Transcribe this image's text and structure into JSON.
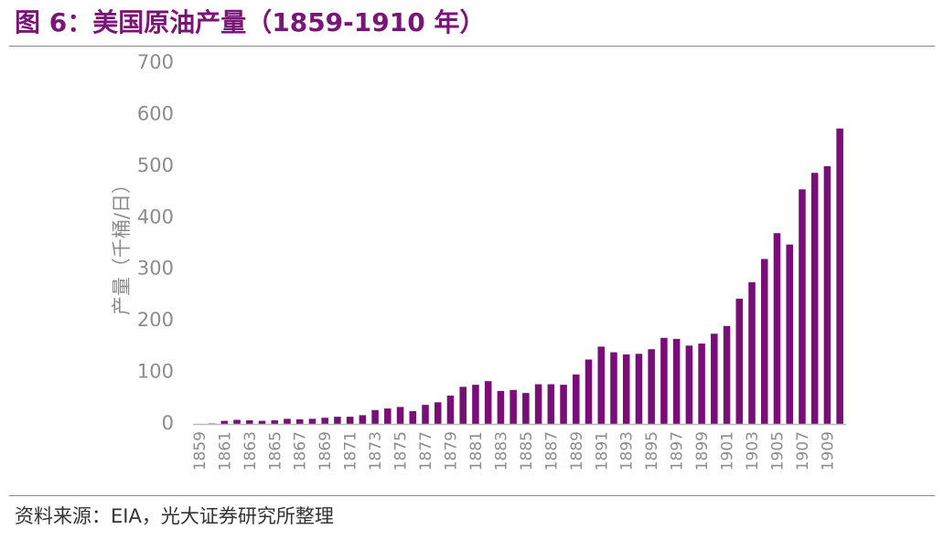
{
  "title": "图 6：美国原油产量（1859-1910 年）",
  "source": "资料来源：EIA，光大证券研究所整理",
  "colors": {
    "bar": "#7a0e78",
    "title": "#7a1577",
    "axis": "#bbbbbb",
    "tick_text": "#8c8c8c"
  },
  "chart_data": {
    "type": "bar",
    "title": "",
    "xlabel": "",
    "ylabel": "产量（千桶/日）",
    "ylim": [
      0,
      700
    ],
    "yticks": [
      0,
      100,
      200,
      300,
      400,
      500,
      600,
      700
    ],
    "grid": false,
    "categories": [
      "1859",
      "1860",
      "1861",
      "1862",
      "1863",
      "1864",
      "1865",
      "1866",
      "1867",
      "1868",
      "1869",
      "1870",
      "1871",
      "1872",
      "1873",
      "1874",
      "1875",
      "1876",
      "1877",
      "1878",
      "1879",
      "1880",
      "1881",
      "1882",
      "1883",
      "1884",
      "1885",
      "1886",
      "1887",
      "1888",
      "1889",
      "1890",
      "1891",
      "1892",
      "1893",
      "1894",
      "1895",
      "1896",
      "1897",
      "1898",
      "1899",
      "1900",
      "1901",
      "1902",
      "1903",
      "1904",
      "1905",
      "1906",
      "1907",
      "1908",
      "1909",
      "1910"
    ],
    "xtick_labels": [
      "1859",
      "1861",
      "1863",
      "1865",
      "1867",
      "1869",
      "1871",
      "1873",
      "1875",
      "1877",
      "1879",
      "1881",
      "1883",
      "1885",
      "1887",
      "1889",
      "1891",
      "1893",
      "1895",
      "1897",
      "1899",
      "1901",
      "1903",
      "1905",
      "1907",
      "1909"
    ],
    "series": [
      {
        "values": [
          0,
          1,
          6,
          8,
          7,
          6,
          7,
          10,
          9,
          10,
          12,
          14,
          14,
          17,
          27,
          30,
          33,
          25,
          37,
          42,
          55,
          72,
          76,
          83,
          64,
          66,
          60,
          77,
          77,
          76,
          96,
          125,
          150,
          139,
          135,
          136,
          145,
          167,
          165,
          152,
          156,
          175,
          190,
          243,
          275,
          320,
          370,
          348,
          455,
          487,
          500,
          573
        ]
      }
    ]
  }
}
